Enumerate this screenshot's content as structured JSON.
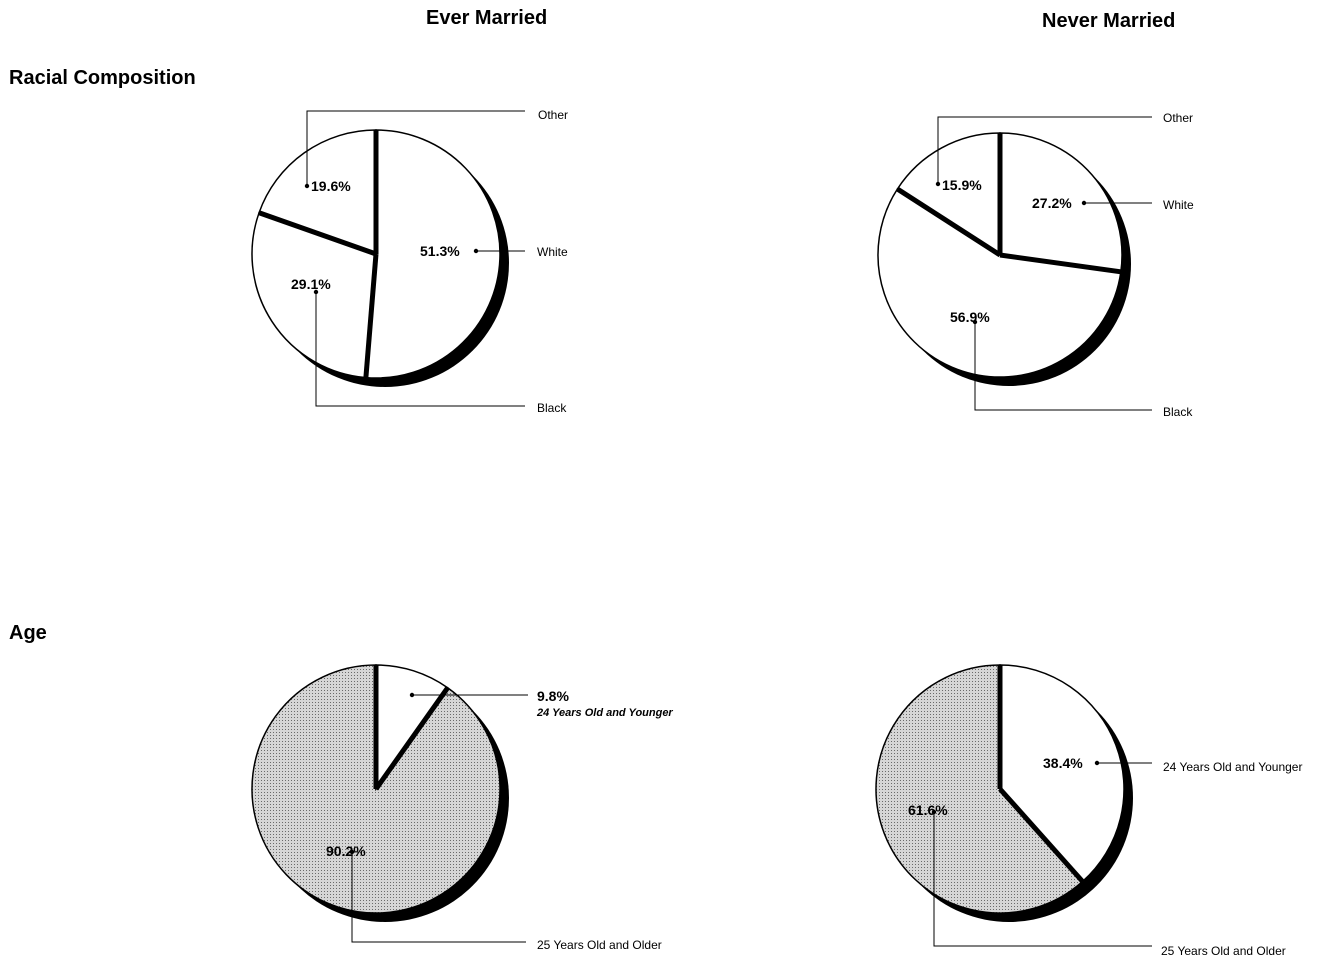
{
  "columns": {
    "ever_married": "Ever Married",
    "never_married": "Never Married"
  },
  "rows": {
    "racial_composition": "Racial Composition",
    "age": "Age"
  },
  "colors": {
    "outline": "#000000",
    "white_fill": "#ffffff",
    "shaded_fill": "#bdbdbd",
    "shadow": "#000000"
  },
  "chart_data": [
    {
      "id": "race-ever",
      "type": "pie",
      "panel": "Racial Composition / Ever Married",
      "title": "",
      "slices": [
        {
          "label": "White",
          "value": 51.3,
          "value_label": "51.3%",
          "fill": "white"
        },
        {
          "label": "Black",
          "value": 29.1,
          "value_label": "29.1%",
          "fill": "white"
        },
        {
          "label": "Other",
          "value": 19.6,
          "value_label": "19.6%",
          "fill": "white"
        }
      ]
    },
    {
      "id": "race-never",
      "type": "pie",
      "panel": "Racial Composition / Never Married",
      "title": "",
      "slices": [
        {
          "label": "White",
          "value": 27.2,
          "value_label": "27.2%",
          "fill": "white"
        },
        {
          "label": "Black",
          "value": 56.9,
          "value_label": "56.9%",
          "fill": "white"
        },
        {
          "label": "Other",
          "value": 15.9,
          "value_label": "15.9%",
          "fill": "white"
        }
      ]
    },
    {
      "id": "age-ever",
      "type": "pie",
      "panel": "Age / Ever Married",
      "title": "",
      "slices": [
        {
          "label": "24 Years Old and Younger",
          "value": 9.8,
          "value_label": "9.8%",
          "fill": "white"
        },
        {
          "label": "25 Years Old and Older",
          "value": 90.2,
          "value_label": "90.2%",
          "fill": "shaded"
        }
      ]
    },
    {
      "id": "age-never",
      "type": "pie",
      "panel": "Age / Never Married",
      "title": "",
      "slices": [
        {
          "label": "24 Years Old and Younger",
          "value": 38.4,
          "value_label": "38.4%",
          "fill": "white"
        },
        {
          "label": "25 Years Old and Older",
          "value": 61.6,
          "value_label": "61.6%",
          "fill": "shaded"
        }
      ]
    }
  ]
}
